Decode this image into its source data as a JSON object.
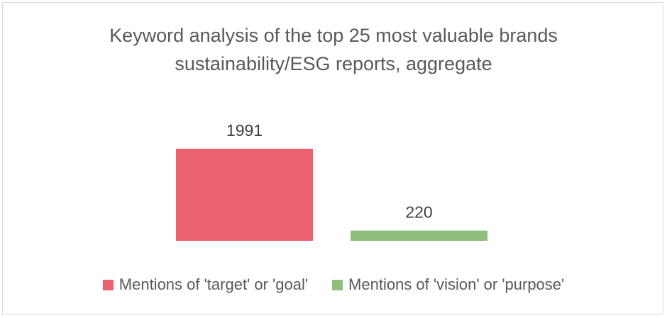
{
  "chart_data": {
    "type": "bar",
    "title_lines": [
      "Keyword analysis of the top 25 most valuable brands",
      "sustainability/ESG reports, aggregate"
    ],
    "series": [
      {
        "name": "Mentions of 'target' or 'goal'",
        "value": 1991,
        "label": "1991",
        "color": "#eb6170"
      },
      {
        "name": "Mentions of 'vision' or 'purpose'",
        "value": 220,
        "label": "220",
        "color": "#8ebd7c"
      }
    ],
    "ylim": [
      0,
      1991
    ],
    "grid": false,
    "legend_position": "bottom"
  }
}
